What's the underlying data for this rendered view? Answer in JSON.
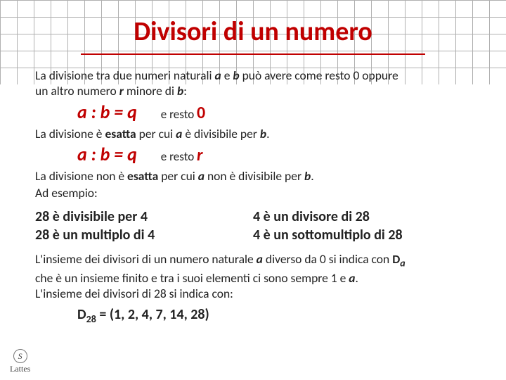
{
  "title": "Divisori di un numero",
  "intro_line1": "La divisione tra due numeri naturali ",
  "intro_a": "a",
  "intro_and": " e ",
  "intro_b": "b",
  "intro_line1_end": " può avere come resto 0 oppure",
  "intro_line2_pre": "un altro numero ",
  "intro_r": "r",
  "intro_line2_mid": " minore di ",
  "intro_b2": "b",
  "intro_line2_end": ":",
  "eq1": "a : b = q",
  "resto_label": "e resto ",
  "resto_zero": "0",
  "exact_line_pre": "La divisione è ",
  "exact_word": "esatta",
  "exact_line_mid": " per cui ",
  "exact_a": "a",
  "exact_line_mid2": " è divisibile per ",
  "exact_b": "b",
  "exact_line_end": ".",
  "eq2": "a : b = q",
  "resto_r": "r",
  "nonexact_line_pre": "La divisione non è ",
  "nonexact_word": "esatta",
  "nonexact_line_mid": " per cui ",
  "nonexact_a": "a",
  "nonexact_line_mid2": " non è divisibile per ",
  "nonexact_b": "b",
  "nonexact_line_end": ".",
  "example_label": "Ad esempio:",
  "col1_l1": "28 è divisibile per 4",
  "col1_l2": "28 è un multiplo di 4",
  "col2_l1": "4 è un divisore di 28",
  "col2_l2": "4 è un sottomultiplo di 28",
  "closing_l1_pre": "L'insieme dei divisori di un numero naturale ",
  "closing_a": "a",
  "closing_l1_mid": " diverso da 0 si indica con ",
  "closing_D": "D",
  "closing_sub_a": "a",
  "closing_l2": "che è un insieme finito e tra i suoi elementi ci sono sempre 1 e ",
  "closing_a2": "a",
  "closing_l2_end": ".",
  "closing_l3": "L'insieme dei divisori di 28 si indica con:",
  "dset_D": "D",
  "dset_sub": "28",
  "dset_eq": " = (1, 2, 4, 7, 14, 28)",
  "logo_letter": "S",
  "logo_text": "Lattes"
}
